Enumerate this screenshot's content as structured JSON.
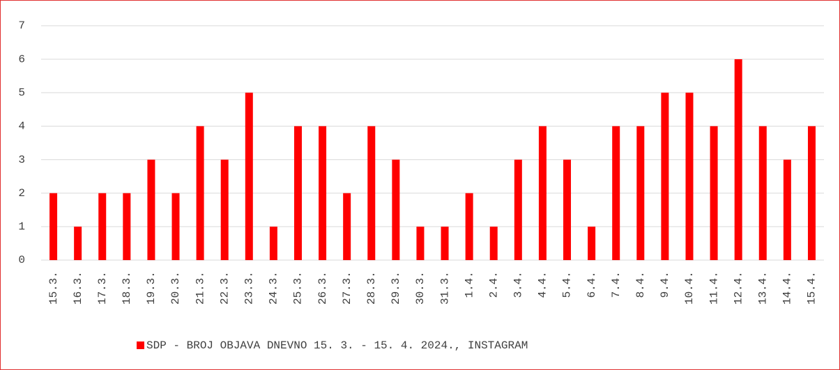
{
  "chart_data": {
    "type": "bar",
    "categories": [
      "15.3.",
      "16.3.",
      "17.3.",
      "18.3.",
      "19.3.",
      "20.3.",
      "21.3.",
      "22.3.",
      "23.3.",
      "24.3.",
      "25.3.",
      "26.3.",
      "27.3.",
      "28.3.",
      "29.3.",
      "30.3.",
      "31.3.",
      "1.4.",
      "2.4.",
      "3.4.",
      "4.4.",
      "5.4.",
      "6.4.",
      "7.4.",
      "8.4.",
      "9.4.",
      "10.4.",
      "11.4.",
      "12.4.",
      "13.4.",
      "14.4.",
      "15.4."
    ],
    "series": [
      {
        "name": "SDP - BROJ OBJAVA DNEVNO 15. 3. - 15. 4. 2024., INSTAGRAM",
        "color": "#ff0000",
        "values": [
          2,
          1,
          2,
          2,
          3,
          2,
          4,
          3,
          5,
          1,
          4,
          4,
          2,
          4,
          3,
          1,
          1,
          2,
          1,
          3,
          4,
          3,
          1,
          4,
          4,
          5,
          5,
          4,
          6,
          4,
          3,
          4
        ]
      }
    ],
    "ylim": [
      0,
      7
    ],
    "yticks": [
      0,
      1,
      2,
      3,
      4,
      5,
      6,
      7
    ],
    "grid": true,
    "legend": "bottom"
  }
}
